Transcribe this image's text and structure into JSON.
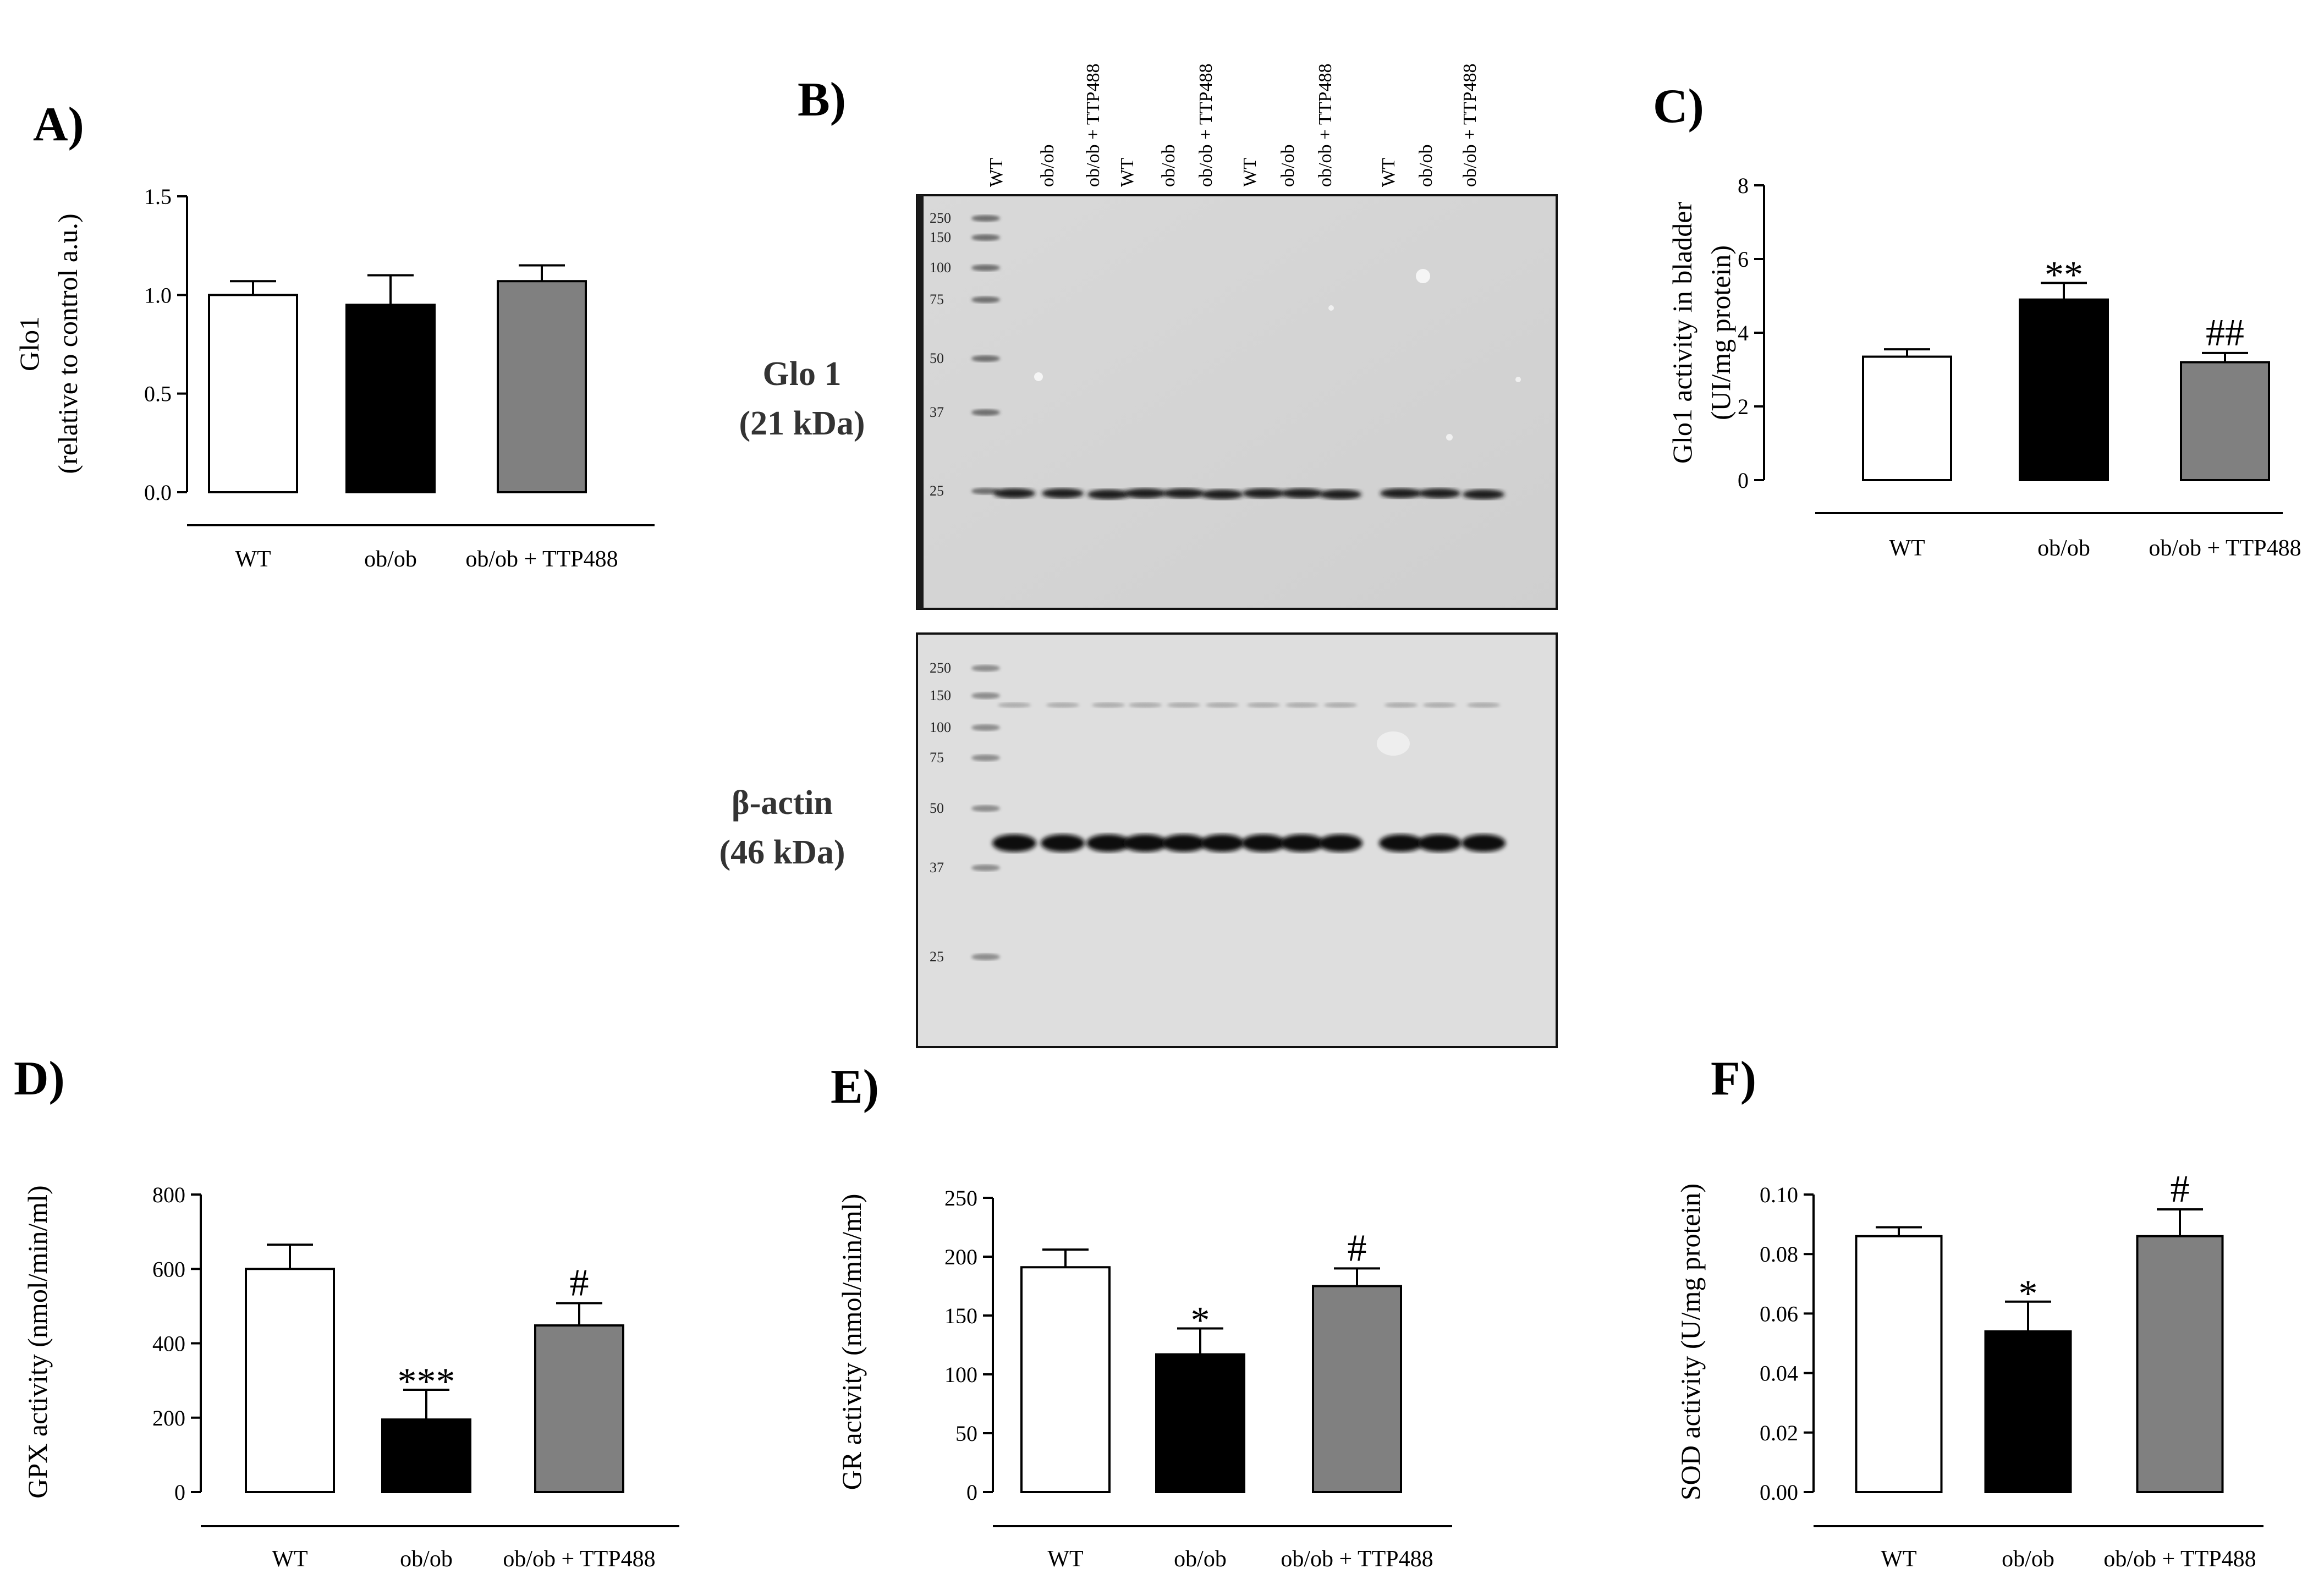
{
  "figure": {
    "panel_letters": [
      "A)",
      "B)",
      "C)",
      "D)",
      "E)",
      "F)"
    ],
    "categories": [
      "WT",
      "ob/ob",
      "ob/ob + TTP488"
    ],
    "colors": {
      "WT": "#ffffff",
      "ob/ob": "#000000",
      "ob/ob + TTP488": "#808080"
    }
  },
  "chart_data": [
    {
      "panel": "A)",
      "type": "bar",
      "categories": [
        "WT",
        "ob/ob",
        "ob/ob + TTP488"
      ],
      "values": [
        1.0,
        0.95,
        1.07
      ],
      "errors": [
        0.07,
        0.15,
        0.08
      ],
      "annotations": [
        "",
        "",
        ""
      ],
      "ylabel": [
        "Glo1",
        "(relative to control a.u.)"
      ],
      "ylim": [
        0,
        1.5
      ],
      "ticks": [
        "0.0",
        "0.5",
        "1.0",
        "1.5"
      ]
    },
    {
      "panel": "C)",
      "type": "bar",
      "categories": [
        "WT",
        "ob/ob",
        "ob/ob + TTP488"
      ],
      "values": [
        3.35,
        4.9,
        3.2
      ],
      "errors": [
        0.2,
        0.45,
        0.25
      ],
      "annotations": [
        "",
        "**",
        "##"
      ],
      "ylabel": [
        "Glo1 activity in bladder",
        "(UI/mg protein)"
      ],
      "ylim": [
        0,
        8
      ],
      "ticks": [
        "0",
        "2",
        "4",
        "6",
        "8"
      ]
    },
    {
      "panel": "D)",
      "type": "bar",
      "categories": [
        "WT",
        "ob/ob",
        "ob/ob + TTP488"
      ],
      "values": [
        600,
        195,
        448
      ],
      "errors": [
        65,
        80,
        60
      ],
      "annotations": [
        "",
        "***",
        "#"
      ],
      "ylabel": [
        "GPX activity (nmol/min/ml)"
      ],
      "ylim": [
        0,
        800
      ],
      "ticks": [
        "0",
        "200",
        "400",
        "600",
        "800"
      ]
    },
    {
      "panel": "E)",
      "type": "bar",
      "categories": [
        "WT",
        "ob/ob",
        "ob/ob + TTP488"
      ],
      "values": [
        191,
        117,
        175
      ],
      "errors": [
        15,
        22,
        15
      ],
      "annotations": [
        "",
        "*",
        "#"
      ],
      "ylabel": [
        "GR activity (nmol/min/ml)"
      ],
      "ylim": [
        0,
        250
      ],
      "ticks": [
        "0",
        "50",
        "100",
        "150",
        "200",
        "250"
      ]
    },
    {
      "panel": "F)",
      "type": "bar",
      "categories": [
        "WT",
        "ob/ob",
        "ob/ob + TTP488"
      ],
      "values": [
        0.086,
        0.054,
        0.086
      ],
      "errors": [
        0.003,
        0.01,
        0.009
      ],
      "annotations": [
        "",
        "*",
        "#"
      ],
      "ylabel": [
        "SOD activity (U/mg protein)"
      ],
      "ylim": [
        0,
        0.1
      ],
      "ticks": [
        "0.00",
        "0.02",
        "0.04",
        "0.06",
        "0.08",
        "0.10"
      ]
    }
  ],
  "western_blot": {
    "panel": "B)",
    "lanes": [
      "WT",
      "ob/ob",
      "ob/ob + TTP488",
      "WT",
      "ob/ob",
      "ob/ob + TTP488",
      "WT",
      "ob/ob",
      "ob/ob + TTP488",
      "WT",
      "ob/ob",
      "ob/ob + TTP488"
    ],
    "glo1_label": [
      "Glo 1",
      "(21 kDa)"
    ],
    "actin_label": [
      "β-actin",
      "(46 kDa)"
    ],
    "glo1_ladder": [
      "250",
      "150",
      "100",
      "75",
      "50",
      "37",
      "25"
    ],
    "actin_ladder": [
      "250",
      "150",
      "100",
      "75",
      "50",
      "37",
      "25"
    ]
  }
}
